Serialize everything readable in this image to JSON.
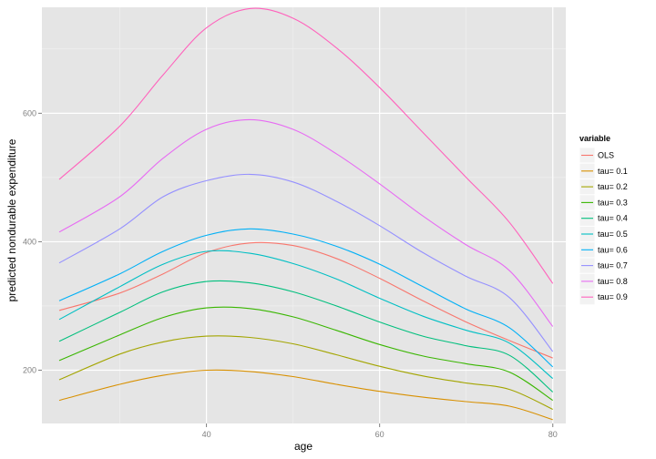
{
  "chart_data": {
    "type": "line",
    "title": "",
    "xlabel": "age",
    "ylabel": "predicted nondurable expenditure",
    "xlim": [
      21,
      81.5
    ],
    "ylim": [
      117,
      765
    ],
    "x_ticks": [
      40,
      60,
      80
    ],
    "y_ticks": [
      200,
      400,
      600
    ],
    "x_tick_labels": [
      "40",
      "60",
      "80"
    ],
    "y_tick_labels": [
      "200",
      "400",
      "600"
    ],
    "grid": true,
    "legend": {
      "title": "variable",
      "position": "right"
    },
    "x": [
      23,
      30,
      35,
      40,
      45,
      50,
      55,
      60,
      65,
      70,
      75,
      80
    ],
    "series": [
      {
        "name": "OLS",
        "color": "#F8766D",
        "values": [
          293,
          320,
          350,
          383,
          398,
          394,
          374,
          343,
          308,
          275,
          246,
          219
        ]
      },
      {
        "name": "tau= 0.1",
        "color": "#D89000",
        "values": [
          153,
          178,
          192,
          200,
          198,
          190,
          178,
          167,
          158,
          151,
          144,
          123
        ]
      },
      {
        "name": "tau= 0.2",
        "color": "#A3A500",
        "values": [
          185,
          225,
          244,
          253,
          251,
          241,
          224,
          206,
          191,
          180,
          170,
          139
        ]
      },
      {
        "name": "tau= 0.3",
        "color": "#39B600",
        "values": [
          215,
          255,
          282,
          297,
          296,
          283,
          262,
          240,
          222,
          210,
          197,
          153
        ]
      },
      {
        "name": "tau= 0.4",
        "color": "#00BF7D",
        "values": [
          245,
          290,
          322,
          338,
          336,
          322,
          300,
          275,
          253,
          238,
          223,
          166
        ]
      },
      {
        "name": "tau= 0.5",
        "color": "#00BFC4",
        "values": [
          279,
          330,
          365,
          385,
          382,
          366,
          342,
          312,
          284,
          262,
          242,
          187
        ]
      },
      {
        "name": "tau= 0.6",
        "color": "#00B0F6",
        "values": [
          308,
          350,
          385,
          410,
          420,
          412,
          393,
          365,
          330,
          295,
          266,
          205
        ]
      },
      {
        "name": "tau= 0.7",
        "color": "#9590FF",
        "values": [
          367,
          420,
          470,
          495,
          505,
          493,
          463,
          425,
          383,
          346,
          313,
          229
        ]
      },
      {
        "name": "tau= 0.8",
        "color": "#E76BF3",
        "values": [
          415,
          470,
          530,
          575,
          590,
          575,
          537,
          490,
          440,
          395,
          355,
          268
        ]
      },
      {
        "name": "tau= 0.9",
        "color": "#FF62BC",
        "values": [
          497,
          580,
          660,
          733,
          763,
          748,
          702,
          640,
          570,
          500,
          430,
          335
        ]
      }
    ]
  }
}
